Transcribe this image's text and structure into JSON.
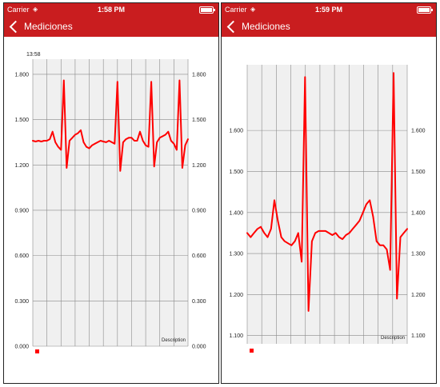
{
  "screens": [
    {
      "status": {
        "carrier": "Carrier",
        "time": "1:58 PM"
      },
      "nav": {
        "back_label": "Mediciones"
      },
      "chart_data": {
        "type": "line",
        "timestamp_label": "13:58",
        "description": "Description",
        "ylim": [
          0,
          1.9
        ],
        "ticks": [
          "1.800",
          "1.500",
          "1.200",
          "0.900",
          "0.600",
          "0.300",
          "0.000"
        ],
        "tick_values": [
          1.8,
          1.5,
          1.2,
          0.9,
          0.6,
          0.3,
          0.0
        ],
        "x_gridlines": 11,
        "series_color": "#ff0000",
        "series": [
          {
            "values": [
              1.36,
              1.355,
              1.36,
              1.355,
              1.36,
              1.36,
              1.37,
              1.42,
              1.35,
              1.32,
              1.3,
              1.76,
              1.18,
              1.36,
              1.38,
              1.4,
              1.41,
              1.43,
              1.35,
              1.32,
              1.31,
              1.33,
              1.34,
              1.35,
              1.36,
              1.355,
              1.35,
              1.36,
              1.35,
              1.34,
              1.75,
              1.16,
              1.35,
              1.37,
              1.38,
              1.38,
              1.36,
              1.36,
              1.42,
              1.36,
              1.33,
              1.32,
              1.75,
              1.19,
              1.35,
              1.38,
              1.39,
              1.4,
              1.42,
              1.36,
              1.34,
              1.3,
              1.76,
              1.18,
              1.33,
              1.37
            ]
          }
        ]
      }
    },
    {
      "status": {
        "carrier": "Carrier",
        "time": "1:59 PM"
      },
      "nav": {
        "back_label": "Mediciones"
      },
      "chart_data": {
        "type": "line",
        "description": "Description",
        "ylim": [
          1.08,
          1.76
        ],
        "ticks": [
          "1.600",
          "1.500",
          "1.400",
          "1.300",
          "1.200",
          "1.100"
        ],
        "tick_values": [
          1.6,
          1.5,
          1.4,
          1.3,
          1.2,
          1.1
        ],
        "x_gridlines": 11,
        "series_color": "#ff0000",
        "series": [
          {
            "values": [
              1.35,
              1.34,
              1.35,
              1.36,
              1.365,
              1.35,
              1.34,
              1.36,
              1.43,
              1.38,
              1.34,
              1.33,
              1.325,
              1.32,
              1.33,
              1.35,
              1.28,
              1.73,
              1.16,
              1.33,
              1.35,
              1.355,
              1.355,
              1.355,
              1.35,
              1.345,
              1.35,
              1.34,
              1.335,
              1.345,
              1.35,
              1.36,
              1.37,
              1.38,
              1.4,
              1.42,
              1.43,
              1.39,
              1.33,
              1.32,
              1.32,
              1.31,
              1.26,
              1.74,
              1.19,
              1.34,
              1.35,
              1.36
            ]
          }
        ]
      }
    }
  ]
}
